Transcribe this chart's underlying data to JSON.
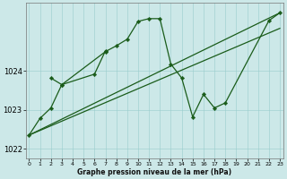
{
  "xlabel": "Graphe pression niveau de la mer (hPa)",
  "background_color": "#cce8e8",
  "line_color": "#1a5c1a",
  "grid_color": "#99cccc",
  "ylim": [
    1021.75,
    1025.75
  ],
  "xlim": [
    -0.3,
    23.3
  ],
  "yticks": [
    1022,
    1023,
    1024
  ],
  "ytick_labels": [
    "1022",
    "1023",
    "1024"
  ],
  "xticks": [
    0,
    1,
    2,
    3,
    4,
    5,
    6,
    7,
    8,
    9,
    10,
    11,
    12,
    13,
    14,
    15,
    16,
    17,
    18,
    19,
    20,
    21,
    22,
    23
  ],
  "series": [
    {
      "x": [
        0,
        23
      ],
      "y": [
        1022.35,
        1025.5
      ],
      "has_markers": false,
      "linewidth": 0.9
    },
    {
      "x": [
        0,
        23
      ],
      "y": [
        1022.35,
        1025.1
      ],
      "has_markers": false,
      "linewidth": 0.9
    },
    {
      "x": [
        0,
        1,
        2,
        3,
        7,
        8,
        9,
        10,
        11,
        12,
        13,
        14,
        15,
        16,
        17,
        18,
        22,
        23
      ],
      "y": [
        1022.35,
        1022.78,
        1023.05,
        1023.65,
        1024.5,
        1024.65,
        1024.82,
        1025.28,
        1025.35,
        1025.35,
        1024.18,
        1023.82,
        1022.82,
        1023.4,
        1023.05,
        1023.18,
        1025.3,
        1025.5
      ],
      "has_markers": true,
      "linewidth": 0.9
    },
    {
      "x": [
        2,
        3,
        6,
        7
      ],
      "y": [
        1023.82,
        1023.65,
        1023.92,
        1024.52
      ],
      "has_markers": true,
      "linewidth": 0.9
    }
  ]
}
